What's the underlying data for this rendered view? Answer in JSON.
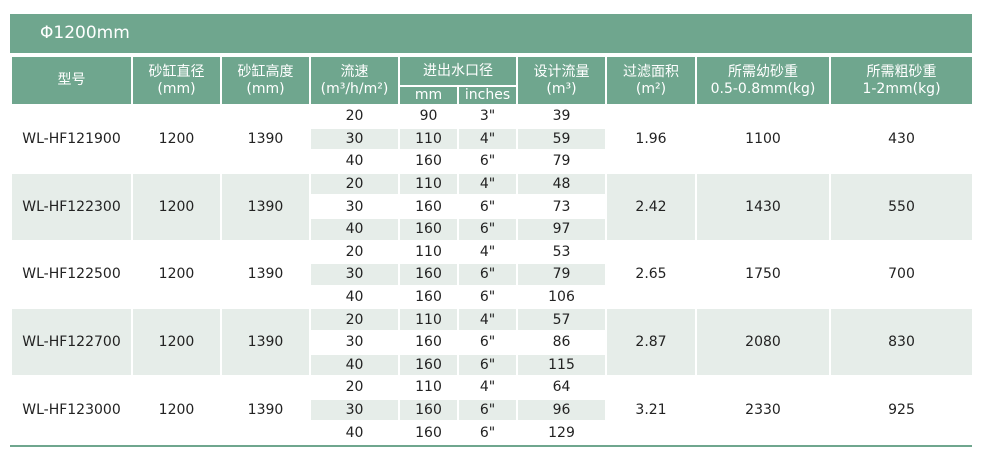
{
  "title": "Φ1200mm",
  "headers": {
    "model": "型号",
    "diameter": "砂缸直径",
    "diameter_unit": "(mm)",
    "height": "砂缸高度",
    "height_unit": "(mm)",
    "velocity": "流速",
    "velocity_unit": "(m³/h/m²)",
    "port": "进出水口径",
    "port_mm": "mm",
    "port_in": "inches",
    "flow": "设计流量",
    "flow_unit": "(m³)",
    "area": "过滤面积",
    "area_unit": "(m²)",
    "fine": "所需幼砂重",
    "fine_unit": "0.5-0.8mm(kg)",
    "coarse": "所需粗砂重",
    "coarse_unit": "1-2mm(kg)"
  },
  "groups": [
    {
      "model": "WL-HF121900",
      "diameter": "1200",
      "height": "1390",
      "area": "1.96",
      "fine": "1100",
      "coarse": "430",
      "rows": [
        [
          "20",
          "90",
          "3\"",
          "39"
        ],
        [
          "30",
          "110",
          "4\"",
          "59"
        ],
        [
          "40",
          "160",
          "6\"",
          "79"
        ]
      ]
    },
    {
      "model": "WL-HF122300",
      "diameter": "1200",
      "height": "1390",
      "area": "2.42",
      "fine": "1430",
      "coarse": "550",
      "rows": [
        [
          "20",
          "110",
          "4\"",
          "48"
        ],
        [
          "30",
          "160",
          "6\"",
          "73"
        ],
        [
          "40",
          "160",
          "6\"",
          "97"
        ]
      ]
    },
    {
      "model": "WL-HF122500",
      "diameter": "1200",
      "height": "1390",
      "area": "2.65",
      "fine": "1750",
      "coarse": "700",
      "rows": [
        [
          "20",
          "110",
          "4\"",
          "53"
        ],
        [
          "30",
          "160",
          "6\"",
          "79"
        ],
        [
          "40",
          "160",
          "6\"",
          "106"
        ]
      ]
    },
    {
      "model": "WL-HF122700",
      "diameter": "1200",
      "height": "1390",
      "area": "2.87",
      "fine": "2080",
      "coarse": "830",
      "rows": [
        [
          "20",
          "110",
          "4\"",
          "57"
        ],
        [
          "30",
          "160",
          "6\"",
          "86"
        ],
        [
          "40",
          "160",
          "6\"",
          "115"
        ]
      ]
    },
    {
      "model": "WL-HF123000",
      "diameter": "1200",
      "height": "1390",
      "area": "3.21",
      "fine": "2330",
      "coarse": "925",
      "rows": [
        [
          "20",
          "110",
          "4\"",
          "64"
        ],
        [
          "30",
          "160",
          "6\"",
          "96"
        ],
        [
          "40",
          "160",
          "6\"",
          "129"
        ]
      ]
    }
  ],
  "colors": {
    "header": "#6fa68e",
    "shade": "#e6ede9"
  }
}
